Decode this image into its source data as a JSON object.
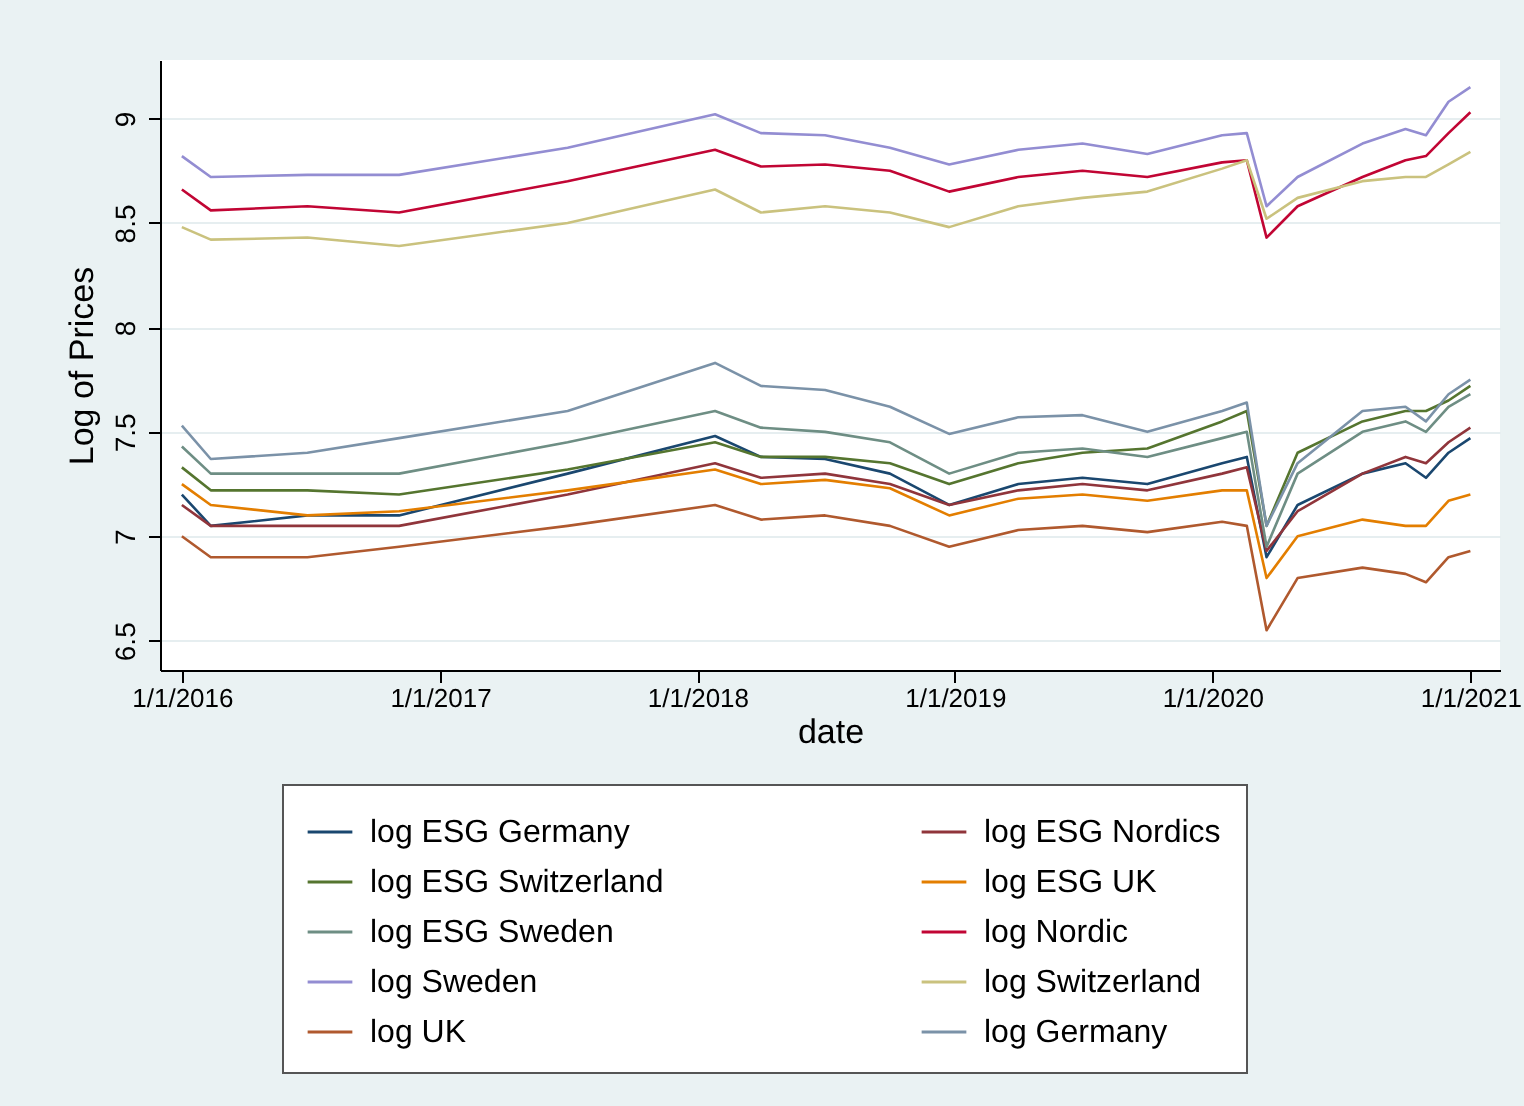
{
  "chart_data": {
    "type": "line",
    "xlabel": "date",
    "ylabel": "Log of Prices",
    "x": [
      "2016-01-01",
      "2016-02-11",
      "2016-06-27",
      "2016-11-04",
      "2017-07-01",
      "2018-01-26",
      "2018-04-01",
      "2018-07-01",
      "2018-10-01",
      "2018-12-24",
      "2019-04-01",
      "2019-07-01",
      "2019-10-01",
      "2020-01-15",
      "2020-02-19",
      "2020-03-18",
      "2020-05-01",
      "2020-08-01",
      "2020-10-01",
      "2020-10-30",
      "2020-12-01",
      "2021-01-01"
    ],
    "series": [
      {
        "name": "log ESG Germany",
        "color": "#1a476f",
        "values": [
          7.2,
          7.05,
          7.1,
          7.1,
          7.3,
          7.48,
          7.38,
          7.37,
          7.3,
          7.15,
          7.25,
          7.28,
          7.25,
          7.35,
          7.38,
          6.9,
          7.15,
          7.3,
          7.35,
          7.28,
          7.4,
          7.47
        ]
      },
      {
        "name": "log ESG Nordics",
        "color": "#90353b",
        "values": [
          7.15,
          7.05,
          7.05,
          7.05,
          7.2,
          7.35,
          7.28,
          7.3,
          7.25,
          7.15,
          7.22,
          7.25,
          7.22,
          7.3,
          7.33,
          6.93,
          7.12,
          7.3,
          7.38,
          7.35,
          7.45,
          7.52
        ]
      },
      {
        "name": "log  ESG Switzerland",
        "color": "#55752f",
        "values": [
          7.33,
          7.22,
          7.22,
          7.2,
          7.32,
          7.45,
          7.38,
          7.38,
          7.35,
          7.25,
          7.35,
          7.4,
          7.42,
          7.55,
          7.6,
          7.05,
          7.4,
          7.55,
          7.6,
          7.6,
          7.65,
          7.72
        ]
      },
      {
        "name": "log ESG UK",
        "color": "#e37e00",
        "values": [
          7.25,
          7.15,
          7.1,
          7.12,
          7.22,
          7.32,
          7.25,
          7.27,
          7.23,
          7.1,
          7.18,
          7.2,
          7.17,
          7.22,
          7.22,
          6.8,
          7.0,
          7.08,
          7.05,
          7.05,
          7.17,
          7.2
        ]
      },
      {
        "name": "log ESG Sweden",
        "color": "#6e8e84",
        "values": [
          7.43,
          7.3,
          7.3,
          7.3,
          7.45,
          7.6,
          7.52,
          7.5,
          7.45,
          7.3,
          7.4,
          7.42,
          7.38,
          7.47,
          7.5,
          6.95,
          7.3,
          7.5,
          7.55,
          7.5,
          7.62,
          7.68
        ]
      },
      {
        "name": "log Nordic",
        "color": "#c10534",
        "values": [
          8.66,
          8.56,
          8.58,
          8.55,
          8.7,
          8.85,
          8.77,
          8.78,
          8.75,
          8.65,
          8.72,
          8.75,
          8.72,
          8.79,
          8.8,
          8.43,
          8.58,
          8.72,
          8.8,
          8.82,
          8.93,
          9.03
        ]
      },
      {
        "name": "log Sweden",
        "color": "#938dd2",
        "values": [
          8.82,
          8.72,
          8.73,
          8.73,
          8.86,
          9.02,
          8.93,
          8.92,
          8.86,
          8.78,
          8.85,
          8.88,
          8.83,
          8.92,
          8.93,
          8.58,
          8.72,
          8.88,
          8.95,
          8.92,
          9.08,
          9.15
        ]
      },
      {
        "name": "log Switzerland",
        "color": "#cac27e",
        "values": [
          8.48,
          8.42,
          8.43,
          8.39,
          8.5,
          8.66,
          8.55,
          8.58,
          8.55,
          8.48,
          8.58,
          8.62,
          8.65,
          8.76,
          8.8,
          8.52,
          8.62,
          8.7,
          8.72,
          8.72,
          8.78,
          8.84
        ]
      },
      {
        "name": "log UK",
        "color": "#b0592e",
        "values": [
          7.0,
          6.9,
          6.9,
          6.95,
          7.05,
          7.15,
          7.08,
          7.1,
          7.05,
          6.95,
          7.03,
          7.05,
          7.02,
          7.07,
          7.05,
          6.55,
          6.8,
          6.85,
          6.82,
          6.78,
          6.9,
          6.93
        ]
      },
      {
        "name": "log Germany",
        "color": "#7b92a8",
        "values": [
          7.53,
          7.37,
          7.4,
          7.47,
          7.6,
          7.83,
          7.72,
          7.7,
          7.62,
          7.49,
          7.57,
          7.58,
          7.5,
          7.6,
          7.64,
          7.05,
          7.35,
          7.6,
          7.62,
          7.55,
          7.68,
          7.75
        ]
      }
    ],
    "xlim": [
      "2015-12-01",
      "2021-02-12"
    ],
    "ylim": [
      6.36,
      9.28
    ],
    "xticks": [
      {
        "value": "2016-01-01",
        "label": "1/1/2016"
      },
      {
        "value": "2017-01-01",
        "label": "1/1/2017"
      },
      {
        "value": "2018-01-01",
        "label": "1/1/2018"
      },
      {
        "value": "2019-01-01",
        "label": "1/1/2019"
      },
      {
        "value": "2020-01-01",
        "label": "1/1/2020"
      },
      {
        "value": "2021-01-01",
        "label": "1/1/2021"
      }
    ],
    "yticks": [
      6.5,
      7,
      7.5,
      8,
      8.5,
      9
    ],
    "grid": "y",
    "legend": "bottom"
  }
}
